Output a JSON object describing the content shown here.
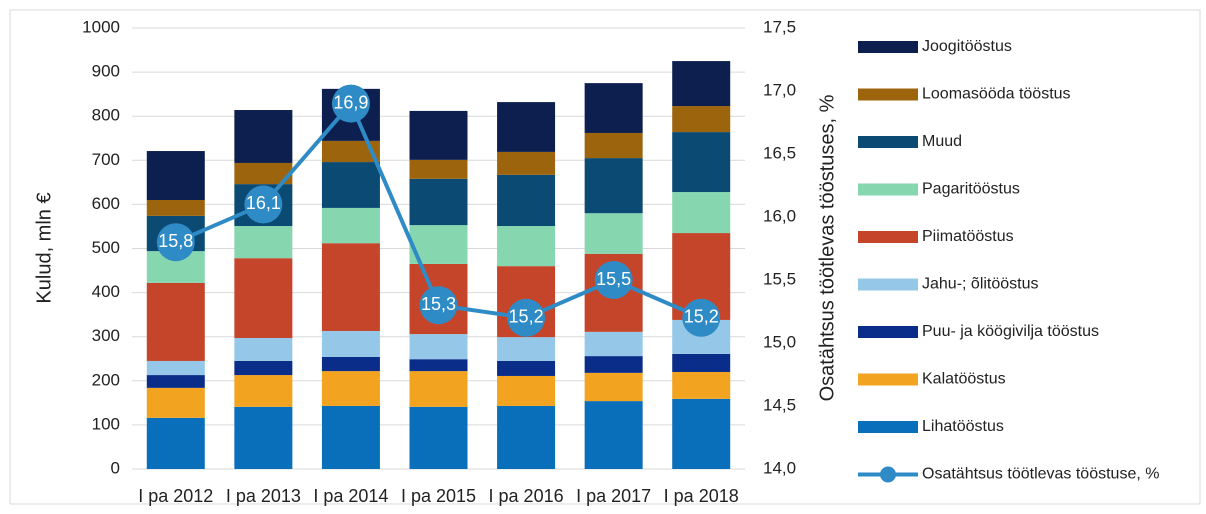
{
  "chart_data": {
    "type": "bar",
    "stacked": true,
    "categories": [
      "I pa 2012",
      "I pa 2013",
      "I pa 2014",
      "I pa 2015",
      "I pa 2016",
      "I pa 2017",
      "I pa 2018"
    ],
    "ylabel": "Kulud, mln €",
    "y2label": "Osatähtsus töötlevas tööstuses, %",
    "ylim": [
      0,
      1000
    ],
    "yticks": [
      0,
      100,
      200,
      300,
      400,
      500,
      600,
      700,
      800,
      900,
      1000
    ],
    "y2lim": [
      14,
      17.5
    ],
    "y2ticks": [
      {
        "value": 14,
        "label": "14,0"
      },
      {
        "value": 14.5,
        "label": "14,5"
      },
      {
        "value": 15,
        "label": "15,0"
      },
      {
        "value": 15.5,
        "label": "15,5"
      },
      {
        "value": 16,
        "label": "16,0"
      },
      {
        "value": 16.5,
        "label": "16,5"
      },
      {
        "value": 17,
        "label": "17,0"
      },
      {
        "value": 17.5,
        "label": "17,5"
      }
    ],
    "grid": true,
    "legend": "right",
    "series": [
      {
        "name": "Lihatööstus",
        "color": "#0a6fba",
        "values": [
          116,
          141,
          143,
          141,
          143,
          154,
          159
        ]
      },
      {
        "name": "Kalatööstus",
        "color": "#f2a31f",
        "values": [
          68,
          72,
          79,
          81,
          68,
          64,
          61
        ]
      },
      {
        "name": "Puu- ja köögivilja tööstus",
        "color": "#0a2d8a",
        "values": [
          29,
          32,
          32,
          27,
          34,
          38,
          41
        ]
      },
      {
        "name": "Jahu-; õlitööstus",
        "color": "#95c8e8",
        "values": [
          32,
          52,
          59,
          57,
          54,
          55,
          77
        ]
      },
      {
        "name": "Piimatööstus",
        "color": "#c4452a",
        "values": [
          177,
          181,
          199,
          159,
          161,
          177,
          197
        ]
      },
      {
        "name": "Pagaritööstus",
        "color": "#86d6b0",
        "values": [
          72,
          73,
          80,
          88,
          91,
          92,
          93
        ]
      },
      {
        "name": "Muud",
        "color": "#0b4a73",
        "values": [
          80,
          95,
          104,
          105,
          116,
          125,
          136
        ]
      },
      {
        "name": "Loomasööda tööstus",
        "color": "#9c640c",
        "values": [
          36,
          48,
          48,
          43,
          52,
          57,
          59
        ]
      },
      {
        "name": "Joogitööstus",
        "color": "#0d1f4f",
        "values": [
          111,
          120,
          118,
          111,
          113,
          113,
          102
        ]
      },
      {
        "name": "Osatähtsus töötlevas tööstuse, %",
        "color": "#2e8bc6",
        "type": "line",
        "axis": "y2",
        "values": [
          15.8,
          16.1,
          16.9,
          15.3,
          15.2,
          15.5,
          15.2
        ],
        "value_labels": [
          "15,8",
          "16,1",
          "16,9",
          "15,3",
          "15,2",
          "15,5",
          "15,2"
        ]
      }
    ]
  }
}
